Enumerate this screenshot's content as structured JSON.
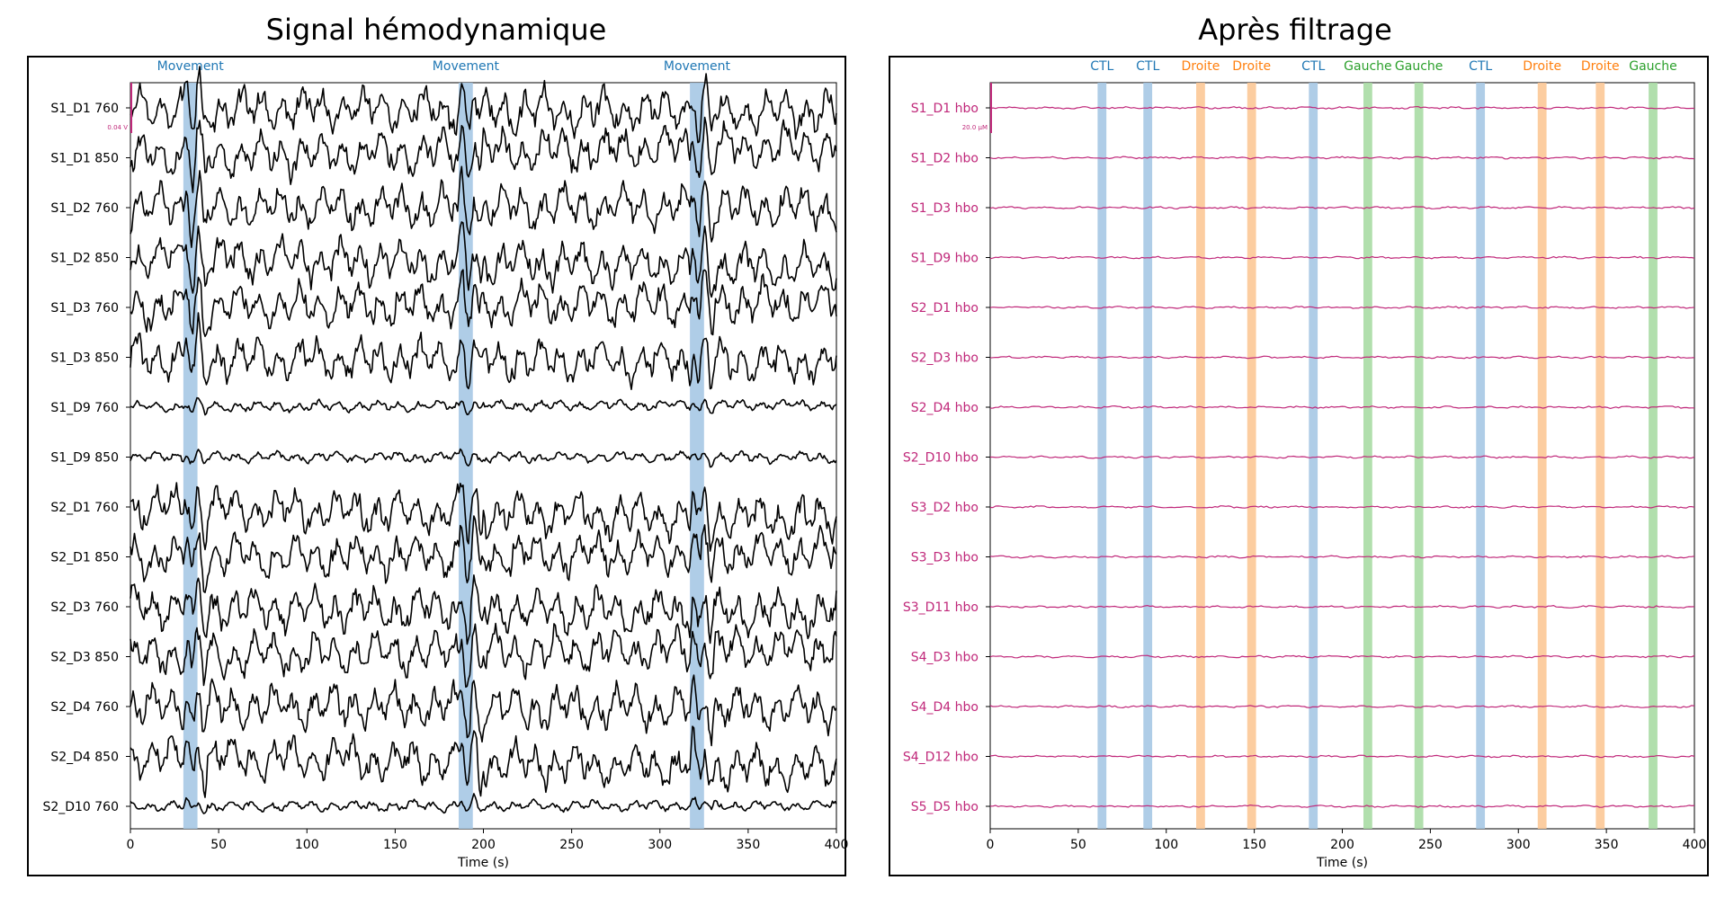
{
  "colors": {
    "raw_trace": "#000000",
    "hbo_trace": "#c0287a",
    "movement": "#1f77b4",
    "CTL": "#1f77b4",
    "Droite": "#ff7f0e",
    "Gauche": "#2ca02c",
    "movement_band": "#a6c8e4",
    "CTL_band": "#a6c8e4",
    "Droite_band": "#fcc896",
    "Gauche_band": "#a9dba4"
  },
  "chart_data": [
    {
      "type": "line",
      "title": "Signal hémodynamique",
      "xlabel": "Time (s)",
      "xlim": [
        0,
        400
      ],
      "x_ticks": [
        0,
        50,
        100,
        150,
        200,
        250,
        300,
        350,
        400
      ],
      "x_tick_labels": [
        "0",
        "50",
        "100",
        "150",
        "200",
        "250",
        "300",
        "350",
        "400"
      ],
      "channels": [
        "S1_D1 760",
        "S1_D1 850",
        "S1_D2 760",
        "S1_D2 850",
        "S1_D3 760",
        "S1_D3 850",
        "S1_D9 760",
        "S1_D9 850",
        "S2_D1 760",
        "S2_D1 850",
        "S2_D3 760",
        "S2_D3 850",
        "S2_D4 760",
        "S2_D4 850",
        "S2_D10 760"
      ],
      "scale_bar": "0.04 V",
      "annotations": [
        {
          "label": "Movement",
          "start": 30,
          "end": 38
        },
        {
          "label": "Movement",
          "start": 186,
          "end": 194
        },
        {
          "label": "Movement",
          "start": 317,
          "end": 325
        }
      ]
    },
    {
      "type": "line",
      "title": "Après filtrage",
      "xlabel": "Time (s)",
      "xlim": [
        0,
        400
      ],
      "x_ticks": [
        0,
        50,
        100,
        150,
        200,
        250,
        300,
        350,
        400
      ],
      "x_tick_labels": [
        "0",
        "50",
        "100",
        "150",
        "200",
        "250",
        "300",
        "350",
        "400"
      ],
      "channels": [
        "S1_D1 hbo",
        "S1_D2 hbo",
        "S1_D3 hbo",
        "S1_D9 hbo",
        "S2_D1 hbo",
        "S2_D3 hbo",
        "S2_D4 hbo",
        "S2_D10 hbo",
        "S3_D2 hbo",
        "S3_D3 hbo",
        "S3_D11 hbo",
        "S4_D3 hbo",
        "S4_D4 hbo",
        "S4_D12 hbo",
        "S5_D5 hbo"
      ],
      "scale_bar": "20.0 µM",
      "annotations": [
        {
          "label": "CTL",
          "start": 61,
          "end": 66
        },
        {
          "label": "CTL",
          "start": 87,
          "end": 92
        },
        {
          "label": "Droite",
          "start": 117,
          "end": 122
        },
        {
          "label": "Droite",
          "start": 146,
          "end": 151
        },
        {
          "label": "CTL",
          "start": 181,
          "end": 186
        },
        {
          "label": "Gauche",
          "start": 212,
          "end": 217
        },
        {
          "label": "Gauche",
          "start": 241,
          "end": 246
        },
        {
          "label": "CTL",
          "start": 276,
          "end": 281
        },
        {
          "label": "Droite",
          "start": 311,
          "end": 316
        },
        {
          "label": "Droite",
          "start": 344,
          "end": 349
        },
        {
          "label": "Gauche",
          "start": 374,
          "end": 379
        }
      ]
    }
  ]
}
